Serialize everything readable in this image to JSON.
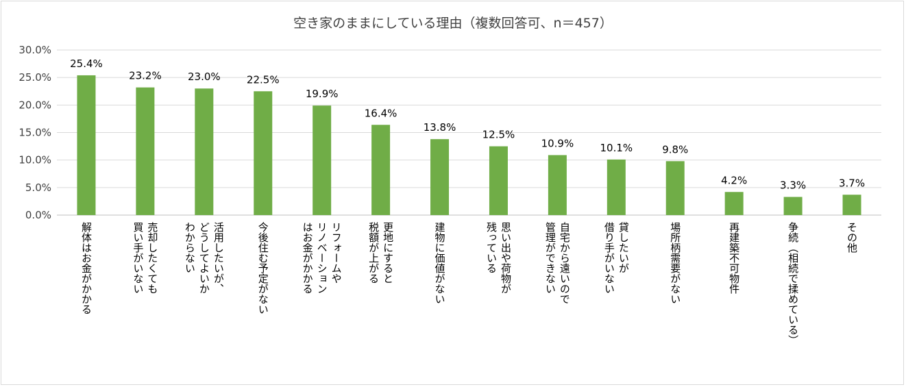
{
  "chart_data": {
    "type": "bar",
    "title": "空き家のままにしている理由（複数回答可、n＝457）",
    "xlabel": "",
    "ylabel": "",
    "ylim": [
      0,
      30
    ],
    "yticks": [
      "0.0%",
      "5.0%",
      "10.0%",
      "15.0%",
      "20.0%",
      "25.0%",
      "30.0%"
    ],
    "grid": true,
    "legend": "none",
    "bar_color": "#70ad47",
    "categories": [
      [
        "解体はお金がかかる"
      ],
      [
        "売却したくても",
        "買い手がいない"
      ],
      [
        "活用したいが、",
        "どうしてよいか",
        "わからない"
      ],
      [
        "今後住む予定がない"
      ],
      [
        "リフォームや",
        "リノベーション",
        "はお金がかかる"
      ],
      [
        "更地にすると",
        "税額が上がる"
      ],
      [
        "建物に価値がない"
      ],
      [
        "思い出や荷物が",
        "残っている"
      ],
      [
        "自宅から遠いので",
        "管理ができない"
      ],
      [
        "貸したいが",
        "借り手がいない"
      ],
      [
        "場所柄需要がない"
      ],
      [
        "再建築不可物件"
      ],
      [
        "争続（相続で揉めている）"
      ],
      [
        "その他"
      ]
    ],
    "values": [
      25.4,
      23.2,
      23.0,
      22.5,
      19.9,
      16.4,
      13.8,
      12.5,
      10.9,
      10.1,
      9.8,
      4.2,
      3.3,
      3.7
    ],
    "data_labels": [
      "25.4%",
      "23.2%",
      "23.0%",
      "22.5%",
      "19.9%",
      "16.4%",
      "13.8%",
      "12.5%",
      "10.9%",
      "10.1%",
      "9.8%",
      "4.2%",
      "3.3%",
      "3.7%"
    ]
  }
}
